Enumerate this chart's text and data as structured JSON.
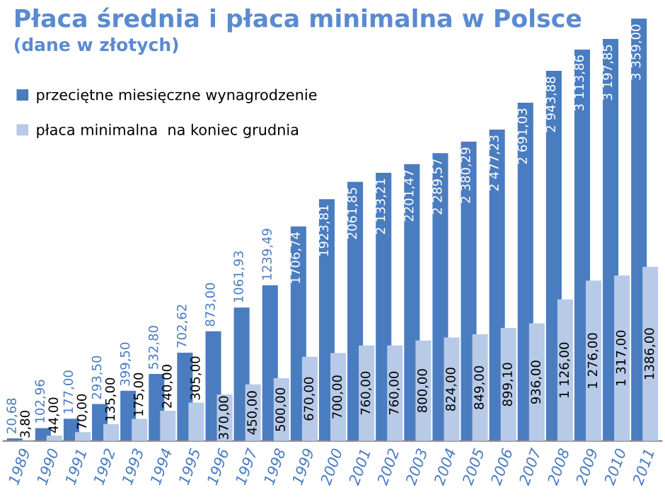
{
  "chart_data": {
    "type": "bar",
    "title": "Płaca średnia i płaca minimalna w Polsce",
    "subtitle": "(dane w złotych)",
    "categories": [
      "1989",
      "1990",
      "1991",
      "1992",
      "1993",
      "1994",
      "1995",
      "1996",
      "1997",
      "1998",
      "1999",
      "2000",
      "2001",
      "2002",
      "2003",
      "2004",
      "2005",
      "2006",
      "2007",
      "2008",
      "2009",
      "2010",
      "2011"
    ],
    "series": [
      {
        "name": "przeciętne miesięczne wynagrodzenie",
        "color": "#4a7cc0",
        "values": [
          20.68,
          102.96,
          177.0,
          293.5,
          399.5,
          532.8,
          702.62,
          873.0,
          1061.93,
          1239.49,
          1706.74,
          1923.81,
          2061.85,
          2133.21,
          2201.47,
          2289.57,
          2380.29,
          2477.23,
          2691.03,
          2943.88,
          3113.86,
          3197.85,
          3359.0
        ],
        "value_labels": [
          "20,68",
          "102,96",
          "177,00",
          "293,50",
          "399,50",
          "532,80",
          "702,62",
          "873,00",
          "1061,93",
          "1239,49",
          "1706,74",
          "1923,81",
          "2061,85",
          "2 133,21",
          "2201,47",
          "2 289,57",
          "2 380,29",
          "2 477,23",
          "2 691,03",
          "2 943,88",
          "3 113,86",
          "3 197,85",
          "3 359,00"
        ]
      },
      {
        "name": "płaca minimalna  na koniec grudnia",
        "color": "#b7cae8",
        "values": [
          3.8,
          44.0,
          70.0,
          135.0,
          175.0,
          240.0,
          305.0,
          370.0,
          450.0,
          500.0,
          670.0,
          700.0,
          760.0,
          760.0,
          800.0,
          824.0,
          849.0,
          899.1,
          936.0,
          1126.0,
          1276.0,
          1317.0,
          1386.0
        ],
        "value_labels": [
          "3,80",
          "44,00",
          "70,00",
          "135,00",
          "175,00",
          "240,00",
          "305,00",
          "370,00",
          "450,00",
          "500,00",
          "670,00",
          "700,00",
          "760,00",
          "760,00",
          "800,00",
          "824,00",
          "849,00",
          "899,10",
          "936,00",
          "1 126,00",
          "1 276,00",
          "1 317,00",
          "1386,00"
        ]
      }
    ],
    "legend": "top left",
    "grid": false
  }
}
